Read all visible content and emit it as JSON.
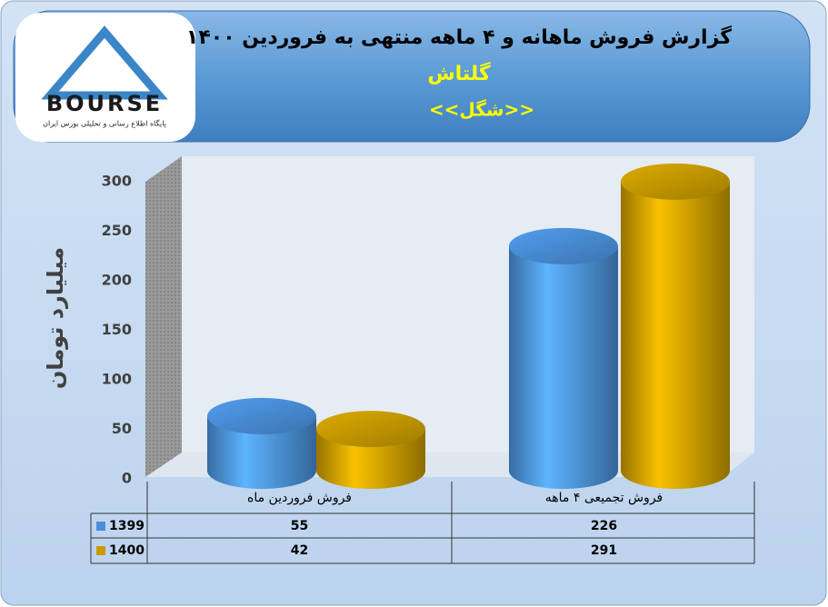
{
  "logo": {
    "text": "BOURSE",
    "tagline": "پایگاه اطلاع رسانی و تحلیلی بورس ایران"
  },
  "chart_data": {
    "type": "bar",
    "title": "گزارش فروش ماهانه و ۴ ماهه  منتهی به فروردین ۱۴۰۰",
    "subtitle": "گلتاش",
    "symbol": "<<شگل>>",
    "y_label": "میلیارد تومان",
    "categories": [
      "فروش فروردین  ماه",
      "فروش تجمیعی ۴ ماهه"
    ],
    "series": [
      {
        "name": "1399",
        "color": "#4a90d9",
        "values": [
          55,
          226
        ]
      },
      {
        "name": "1400",
        "color": "#c89b00",
        "values": [
          42,
          291
        ]
      }
    ],
    "ylim": [
      0,
      300
    ],
    "yticks": [
      0,
      50,
      100,
      150,
      200,
      250,
      300
    ],
    "grid": false
  }
}
